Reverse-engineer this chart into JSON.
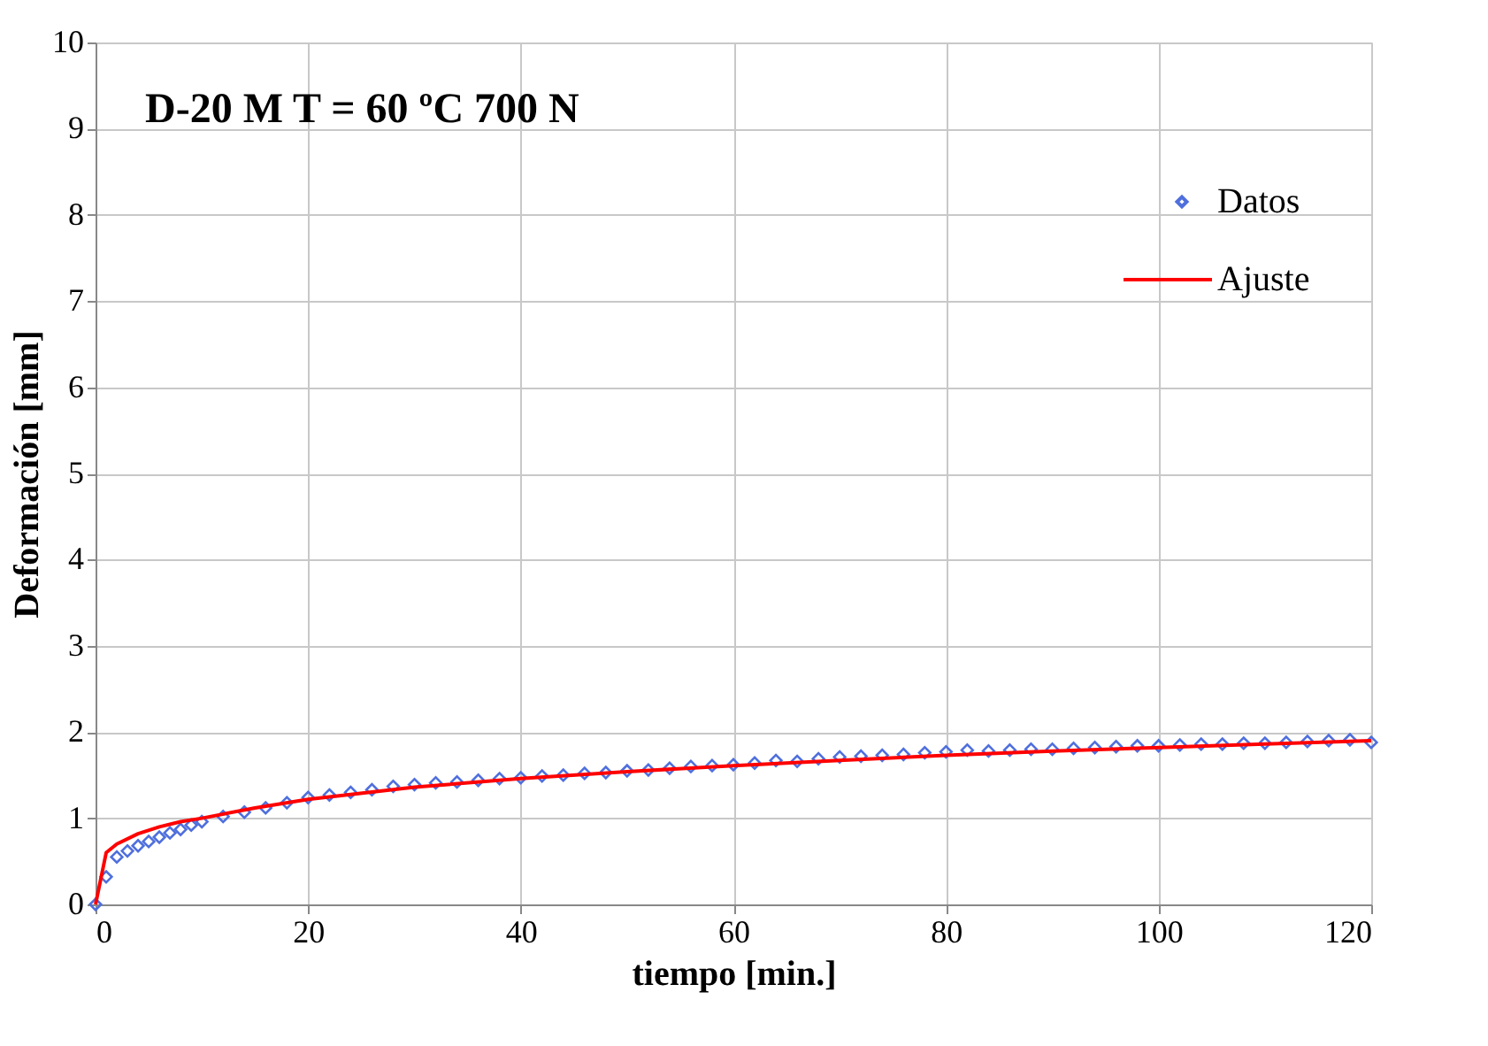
{
  "chart_data": {
    "type": "scatter",
    "title": "D-20 M T = 60 ºC 700 N",
    "xlabel": "tiempo [min.]",
    "ylabel": "Deformación [mm]",
    "xlim": [
      0,
      120
    ],
    "xticks": [
      0,
      20,
      40,
      60,
      80,
      100,
      120
    ],
    "ylim": [
      0,
      10
    ],
    "yticks": [
      0,
      1,
      2,
      3,
      4,
      5,
      6,
      7,
      8,
      9,
      10
    ],
    "grid": true,
    "legend": "top right",
    "series": [
      {
        "name": "Datos",
        "marker": "diamond",
        "color": "#4f6fdd",
        "x": [
          0,
          1,
          2,
          3,
          4,
          5,
          6,
          7,
          8,
          9,
          10,
          12,
          14,
          16,
          18,
          20,
          22,
          24,
          26,
          28,
          30,
          32,
          34,
          36,
          38,
          40,
          42,
          44,
          46,
          48,
          50,
          52,
          54,
          56,
          58,
          60,
          62,
          64,
          66,
          68,
          70,
          72,
          74,
          76,
          78,
          80,
          82,
          84,
          86,
          88,
          90,
          92,
          94,
          96,
          98,
          100,
          102,
          104,
          106,
          108,
          110,
          112,
          114,
          116,
          118,
          120
        ],
        "values": [
          0,
          0.32,
          0.55,
          0.62,
          0.68,
          0.73,
          0.78,
          0.83,
          0.87,
          0.92,
          0.96,
          1.02,
          1.07,
          1.12,
          1.18,
          1.24,
          1.27,
          1.3,
          1.33,
          1.37,
          1.39,
          1.41,
          1.42,
          1.44,
          1.46,
          1.47,
          1.49,
          1.5,
          1.52,
          1.53,
          1.55,
          1.56,
          1.58,
          1.6,
          1.61,
          1.62,
          1.64,
          1.67,
          1.66,
          1.69,
          1.71,
          1.72,
          1.73,
          1.74,
          1.76,
          1.77,
          1.79,
          1.78,
          1.79,
          1.8,
          1.8,
          1.81,
          1.82,
          1.83,
          1.84,
          1.84,
          1.85,
          1.86,
          1.86,
          1.87,
          1.87,
          1.88,
          1.89,
          1.9,
          1.91,
          1.88
        ]
      },
      {
        "name": "Ajuste",
        "type": "line",
        "marker": "none",
        "line_style": "solid",
        "color": "#ff0000",
        "x": [
          0,
          1,
          2,
          4,
          6,
          8,
          10,
          15,
          20,
          30,
          40,
          50,
          60,
          70,
          80,
          90,
          100,
          110,
          120
        ],
        "values": [
          0,
          0.6,
          0.7,
          0.82,
          0.9,
          0.96,
          1.0,
          1.12,
          1.22,
          1.36,
          1.46,
          1.54,
          1.61,
          1.67,
          1.73,
          1.78,
          1.82,
          1.86,
          1.9
        ]
      }
    ]
  }
}
